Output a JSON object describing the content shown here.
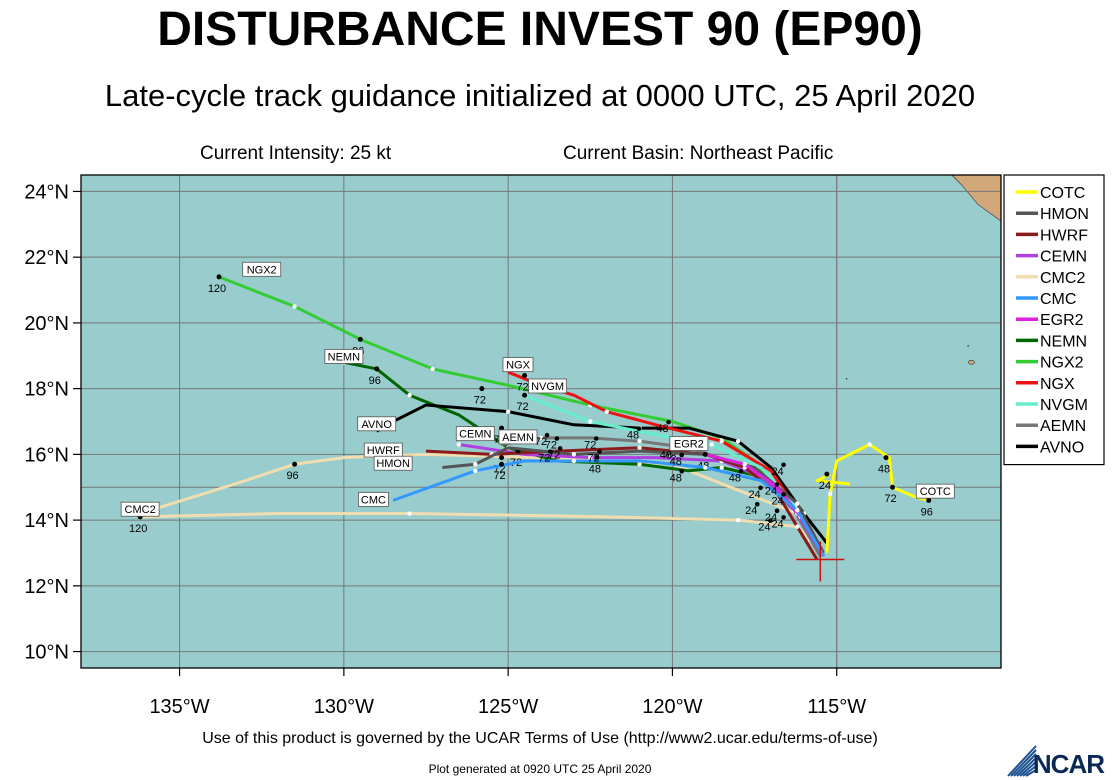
{
  "header": {
    "title": "DISTURBANCE INVEST 90 (EP90)",
    "subtitle": "Late-cycle track guidance initialized at 0000 UTC, 25 April 2020",
    "current_intensity": "Current Intensity: 25 kt",
    "current_basin": "Current Basin: Northeast Pacific"
  },
  "footer": {
    "terms": "Use of this product is governed by the UCAR Terms of Use (http://www2.ucar.edu/terms-of-use)",
    "generated": "Plot generated at 0920 UTC   25 April 2020",
    "logo": "NCAR"
  },
  "colors": {
    "ocean": "#99cccc",
    "land": "#d2a77a",
    "grid": "#777777"
  },
  "map": {
    "lon_range": [
      -138,
      -110
    ],
    "lat_range": [
      9.5,
      24.5
    ],
    "lon_ticks": [
      -135,
      -130,
      -125,
      -120,
      -115
    ],
    "lat_ticks": [
      10,
      12,
      14,
      16,
      18,
      20,
      22,
      24
    ],
    "lon_labels": [
      "135°W",
      "130°W",
      "125°W",
      "120°W",
      "115°W"
    ],
    "lat_labels": [
      "10°N",
      "12°N",
      "14°N",
      "16°N",
      "18°N",
      "20°N",
      "22°N",
      "24°N"
    ],
    "current_position": [
      -115.5,
      12.8
    ],
    "legend": [
      {
        "name": "COTC",
        "color": "#ffff00"
      },
      {
        "name": "HMON",
        "color": "#555555"
      },
      {
        "name": "HWRF",
        "color": "#8b1a1a"
      },
      {
        "name": "CEMN",
        "color": "#b040e0"
      },
      {
        "name": "CMC2",
        "color": "#f0ddb0"
      },
      {
        "name": "CMC",
        "color": "#3399ff"
      },
      {
        "name": "EGR2",
        "color": "#dd22dd"
      },
      {
        "name": "NEMN",
        "color": "#006600"
      },
      {
        "name": "NGX2",
        "color": "#33cc33"
      },
      {
        "name": "NGX",
        "color": "#ee1111"
      },
      {
        "name": "NVGM",
        "color": "#66eecc"
      },
      {
        "name": "AEMN",
        "color": "#777777"
      },
      {
        "name": "AVNO",
        "color": "#000000"
      }
    ],
    "tracks": [
      {
        "name": "CMC2",
        "color": "#f0ddb0",
        "end_label": "CMC2",
        "points": [
          [
            -115.4,
            12.9
          ],
          [
            -115.8,
            13.4
          ],
          [
            -116.2,
            13.8
          ],
          [
            -118,
            14.0
          ],
          [
            -122,
            14.1
          ],
          [
            -128,
            14.2
          ],
          [
            -132,
            14.2
          ],
          [
            -136.2,
            14.1
          ]
        ],
        "dots": [
          [
            -136.2,
            14.1,
            "120"
          ]
        ],
        "branch": [
          [
            -116.2,
            14.2
          ],
          [
            -120,
            15.7
          ],
          [
            -124,
            15.9
          ],
          [
            -127.5,
            16.0
          ],
          [
            -130,
            15.9
          ],
          [
            -131.5,
            15.7
          ],
          [
            -133,
            15.2
          ],
          [
            -136.2,
            14.2
          ]
        ],
        "branch_dots": [
          [
            -131.5,
            15.7,
            "96"
          ]
        ]
      },
      {
        "name": "NGX2",
        "color": "#33cc33",
        "end_label": "NGX2",
        "points": [
          [
            -115.4,
            12.9
          ],
          [
            -116.2,
            14.2
          ],
          [
            -117.5,
            15.8
          ],
          [
            -118.5,
            16.5
          ],
          [
            -120,
            17.0
          ],
          [
            -122.5,
            17.5
          ],
          [
            -125,
            18.1
          ],
          [
            -127.3,
            18.6
          ],
          [
            -129.5,
            19.5
          ],
          [
            -131.5,
            20.5
          ],
          [
            -133.8,
            21.4
          ]
        ],
        "dots": [
          [
            -129.5,
            19.5,
            "96"
          ],
          [
            -133.8,
            21.4,
            "120"
          ]
        ]
      },
      {
        "name": "NEMN",
        "color": "#006600",
        "end_label": "NEMN",
        "points": [
          [
            -115.4,
            12.9
          ],
          [
            -116.3,
            14.6
          ],
          [
            -117.2,
            15.3
          ],
          [
            -118.5,
            15.6
          ],
          [
            -119.5,
            15.5
          ],
          [
            -121,
            15.7
          ],
          [
            -123.5,
            15.8
          ],
          [
            -125,
            16.2
          ],
          [
            -126.5,
            17.2
          ],
          [
            -128,
            17.8
          ],
          [
            -129,
            18.6
          ],
          [
            -130,
            18.8
          ]
        ],
        "dots": [
          [
            -129,
            18.6,
            "96"
          ]
        ]
      },
      {
        "name": "AVNO",
        "color": "#000000",
        "end_label": "AVNO",
        "points": [
          [
            -115.3,
            13.3
          ],
          [
            -116,
            14.2
          ],
          [
            -117,
            15.6
          ],
          [
            -118,
            16.4
          ],
          [
            -119.5,
            16.8
          ],
          [
            -121,
            16.8
          ],
          [
            -123,
            16.9
          ],
          [
            -125,
            17.3
          ],
          [
            -127.5,
            17.5
          ],
          [
            -128.5,
            17.0
          ],
          [
            -129,
            16.7
          ]
        ],
        "dots": [
          [
            -125.2,
            16.8,
            "72"
          ]
        ]
      },
      {
        "name": "NGX",
        "color": "#ee1111",
        "end_label": "NGX",
        "points": [
          [
            -115.4,
            12.9
          ],
          [
            -116,
            14.0
          ],
          [
            -117,
            15.5
          ],
          [
            -118.5,
            16.4
          ],
          [
            -120.5,
            16.9
          ],
          [
            -122,
            17.3
          ],
          [
            -123,
            17.8
          ],
          [
            -124,
            18.1
          ],
          [
            -125,
            18.5
          ]
        ],
        "dots": [
          [
            -124.5,
            18.4,
            "72"
          ]
        ]
      },
      {
        "name": "NVGM",
        "color": "#66eecc",
        "end_label": "NVGM",
        "points": [
          [
            -115.4,
            12.9
          ],
          [
            -116.2,
            14.4
          ],
          [
            -117.3,
            15.6
          ],
          [
            -118.8,
            16.3
          ],
          [
            -120.5,
            16.6
          ],
          [
            -122.5,
            17.0
          ],
          [
            -124.5,
            17.8
          ]
        ],
        "dots": [
          [
            -124.5,
            17.8,
            "72"
          ],
          [
            -125.8,
            18.0,
            "72"
          ]
        ]
      },
      {
        "name": "AEMN",
        "color": "#777777",
        "end_label": "AEMN",
        "points": [
          [
            -115.5,
            12.9
          ],
          [
            -116.3,
            14.3
          ],
          [
            -117.2,
            15.2
          ],
          [
            -118.3,
            15.8
          ],
          [
            -119.5,
            16.2
          ],
          [
            -121,
            16.4
          ],
          [
            -122.5,
            16.5
          ],
          [
            -124,
            16.5
          ],
          [
            -125.2,
            16.3
          ]
        ],
        "dots": [
          [
            -120,
            16.3,
            "48"
          ]
        ]
      },
      {
        "name": "CEMN",
        "color": "#b040e0",
        "end_label": "CEMN",
        "points": [
          [
            -115.4,
            12.9
          ],
          [
            -116.2,
            14.2
          ],
          [
            -117.2,
            15.3
          ],
          [
            -118.5,
            15.8
          ],
          [
            -120.5,
            15.9
          ],
          [
            -122.5,
            15.9
          ],
          [
            -124.5,
            16.0
          ],
          [
            -126.5,
            16.3
          ]
        ],
        "dots": [
          [
            -122.3,
            15.9,
            "48"
          ]
        ]
      },
      {
        "name": "HWRF",
        "color": "#8b1a1a",
        "end_label": "HWRF",
        "points": [
          [
            -115.6,
            12.8
          ],
          [
            -116.2,
            13.8
          ],
          [
            -116.8,
            14.8
          ],
          [
            -117.8,
            15.6
          ],
          [
            -119,
            16.0
          ],
          [
            -121,
            16.2
          ],
          [
            -123.5,
            16.1
          ],
          [
            -125.5,
            16.0
          ],
          [
            -127.5,
            16.1
          ]
        ],
        "dots": [
          [
            -124.7,
            16.1,
            "72"
          ]
        ]
      },
      {
        "name": "HMON",
        "color": "#555555",
        "end_label": "HMON",
        "points": [
          [
            -115.4,
            13.0
          ],
          [
            -116.2,
            14.5
          ],
          [
            -117.5,
            15.6
          ],
          [
            -119,
            16.0
          ],
          [
            -121,
            16.1
          ],
          [
            -123,
            16.0
          ],
          [
            -125,
            16.2
          ],
          [
            -126,
            15.7
          ],
          [
            -127,
            15.6
          ]
        ],
        "dots": [
          [
            -125.2,
            15.9,
            "72"
          ]
        ]
      },
      {
        "name": "EGR2",
        "color": "#dd22dd",
        "end_label": "EGR2",
        "points": [
          [
            -115.4,
            12.9
          ],
          [
            -116.1,
            14.1
          ],
          [
            -116.8,
            15.0
          ],
          [
            -117.8,
            15.7
          ],
          [
            -119,
            16.0
          ]
        ],
        "dots": [
          [
            -119,
            16.0,
            "48"
          ]
        ]
      },
      {
        "name": "CMC",
        "color": "#3399ff",
        "end_label": "CMC",
        "points": [
          [
            -115.4,
            12.9
          ],
          [
            -116.2,
            14.3
          ],
          [
            -117.3,
            15.2
          ],
          [
            -119,
            15.6
          ],
          [
            -121,
            15.8
          ],
          [
            -123,
            15.8
          ],
          [
            -124.5,
            15.8
          ],
          [
            -126,
            15.5
          ],
          [
            -128.5,
            14.6
          ]
        ],
        "dots": [
          [
            -125.2,
            15.7,
            "72"
          ]
        ]
      },
      {
        "name": "COTC",
        "color": "#ffff00",
        "end_label": "COTC",
        "points": [
          [
            -115.3,
            13.0
          ],
          [
            -115.2,
            14.8
          ],
          [
            -115.0,
            15.8
          ],
          [
            -114.0,
            16.3
          ],
          [
            -113.4,
            15.9
          ],
          [
            -113.3,
            15.0
          ],
          [
            -112.6,
            14.7
          ],
          [
            -112.2,
            14.6
          ]
        ],
        "dots": [
          [
            -115.3,
            15.4,
            "24"
          ],
          [
            -113.5,
            15.9,
            "48"
          ],
          [
            -113.3,
            15.0,
            "72"
          ],
          [
            -112.2,
            14.6,
            "96"
          ]
        ],
        "branch": [
          [
            -115.2,
            15.4
          ],
          [
            -115.6,
            15.2
          ],
          [
            -114.6,
            15.1
          ]
        ],
        "branch_dots": []
      }
    ],
    "hour_labels": [
      [
        -117.0,
        14.9,
        "24"
      ],
      [
        -116.8,
        14.6,
        "24"
      ],
      [
        -117.0,
        14.1,
        "24"
      ],
      [
        -116.8,
        13.9,
        "24"
      ],
      [
        -117.6,
        14.3,
        "24"
      ],
      [
        -117.2,
        13.8,
        "24"
      ],
      [
        -117.5,
        14.8,
        "24"
      ],
      [
        -120.3,
        16.8,
        "48"
      ],
      [
        -119.7,
        16.3,
        "48"
      ],
      [
        -120.2,
        16.0,
        "48"
      ],
      [
        -119.9,
        15.8,
        "48"
      ],
      [
        -119.9,
        15.3,
        "48"
      ],
      [
        -121.2,
        16.6,
        "48"
      ],
      [
        -118.1,
        15.3,
        "48"
      ],
      [
        -116.8,
        15.5,
        "24"
      ],
      [
        -122.4,
        15.9,
        "72"
      ],
      [
        -122.5,
        16.3,
        "72"
      ],
      [
        -123.7,
        16.3,
        "72"
      ],
      [
        -123.9,
        15.9,
        "72"
      ],
      [
        -123.6,
        16.0,
        "72"
      ],
      [
        -124.0,
        16.4,
        "72"
      ]
    ],
    "end_label_pos": {
      "NGX2": [
        -132.5,
        21.6
      ],
      "NEMN": [
        -130.0,
        18.95
      ],
      "AVNO": [
        -129.0,
        16.9
      ],
      "NGX": [
        -124.7,
        18.7
      ],
      "NVGM": [
        -123.8,
        18.05
      ],
      "AEMN": [
        -124.7,
        16.5
      ],
      "CEMN": [
        -126.0,
        16.6
      ],
      "HWRF": [
        -128.8,
        16.1
      ],
      "HMON": [
        -128.5,
        15.7
      ],
      "EGR2": [
        -119.5,
        16.3
      ],
      "CMC": [
        -129.1,
        14.6
      ],
      "CMC2": [
        -136.2,
        14.3
      ],
      "COTC": [
        -112.0,
        14.85
      ]
    }
  }
}
